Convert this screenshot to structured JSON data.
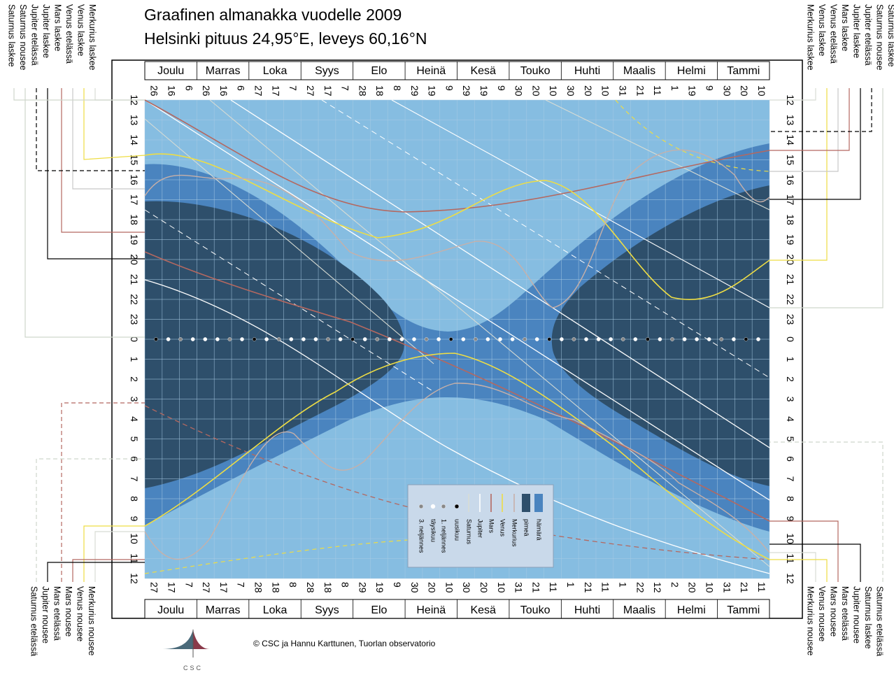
{
  "title": "Graafinen almanakka vuodelle 2009",
  "subtitle": "Helsinki  pituus 24,95°E,  leveys 60,16°N",
  "credit": "© CSC ja Hannu Karttunen, Tuorlan observatorio",
  "logo_text": "CSC",
  "colors": {
    "light": "#86bde1",
    "twilight": "#4a84bf",
    "dark": "#2e4f6b",
    "mars": "#b46860",
    "venus": "#eedd44",
    "mercury": "#c8b0a8",
    "jupiter": "#ffffff",
    "saturn": "#d8dcd4",
    "frame": "#000000"
  },
  "chart_data": {
    "type": "line",
    "months_top": [
      "Joulu",
      "Marras",
      "Loka",
      "Syys",
      "Elo",
      "Heinä",
      "Kesä",
      "Touko",
      "Huhti",
      "Maalis",
      "Helmi",
      "Tammi"
    ],
    "days_top": [
      "26",
      "16",
      "6",
      "26",
      "16",
      "6",
      "27",
      "17",
      "7",
      "27",
      "17",
      "7",
      "28",
      "18",
      "8",
      "29",
      "19",
      "9",
      "29",
      "19",
      "9",
      "30",
      "20",
      "10",
      "30",
      "20",
      "10",
      "31",
      "21",
      "11",
      "1",
      "19",
      "9",
      "30",
      "20",
      "10"
    ],
    "months_bottom": [
      "Joulu",
      "Marras",
      "Loka",
      "Syys",
      "Elo",
      "Heinä",
      "Kesä",
      "Touko",
      "Huhti",
      "Maalis",
      "Helmi",
      "Tammi"
    ],
    "days_bottom": [
      "27",
      "17",
      "7",
      "27",
      "17",
      "7",
      "28",
      "18",
      "8",
      "28",
      "18",
      "8",
      "29",
      "19",
      "9",
      "30",
      "20",
      "10",
      "30",
      "20",
      "10",
      "31",
      "21",
      "11",
      "1",
      "21",
      "11",
      "1",
      "22",
      "12",
      "2",
      "20",
      "10",
      "31",
      "21",
      "11"
    ],
    "hours": [
      "12",
      "13",
      "14",
      "15",
      "16",
      "17",
      "18",
      "19",
      "20",
      "21",
      "22",
      "23",
      "0",
      "1",
      "2",
      "3",
      "4",
      "5",
      "6",
      "7",
      "8",
      "9",
      "10",
      "11",
      "12"
    ],
    "left_top_labels": [
      "Saturnus laskee",
      "Saturnus nousee",
      "Jupiter etelässä",
      "Jupiter laskee",
      "Mars laskee",
      "Venus etelässä",
      "Venus laskee",
      "Merkurius laskee"
    ],
    "right_top_labels": [
      "Merkurius laskee",
      "Venus laskee",
      "Venus etelässä",
      "Mars laskee",
      "Jupiter laskee",
      "Jupiter etelässä",
      "Saturnus nousee",
      "Saturnus laskee"
    ],
    "left_bottom_labels": [
      "Saturnus etelässä",
      "Jupiter nousee",
      "Mars etelässä",
      "Mars nousee",
      "Venus nousee",
      "Merkurius nousee"
    ],
    "right_bottom_labels": [
      "Merkurius nousee",
      "Venus nousee",
      "Mars nousee",
      "Mars etelässä",
      "Jupiter nousee",
      "Saturnus laskee",
      "Saturnus etelässä"
    ],
    "legend": [
      {
        "key": "twilight",
        "label": "hämärä"
      },
      {
        "key": "dark",
        "label": "pimeä"
      },
      {
        "key": "mercury",
        "label": "Merkurius"
      },
      {
        "key": "venus",
        "label": "Venus"
      },
      {
        "key": "mars",
        "label": "Mars"
      },
      {
        "key": "jupiter",
        "label": "Jupiter"
      },
      {
        "key": "saturn",
        "label": "Saturnus"
      },
      {
        "key": "new-moon",
        "label": "uusikuu"
      },
      {
        "key": "first-quarter",
        "label": "1. neljännes"
      },
      {
        "key": "full-moon",
        "label": "täysikuu"
      },
      {
        "key": "last-quarter",
        "label": "3. neljännes"
      }
    ]
  }
}
